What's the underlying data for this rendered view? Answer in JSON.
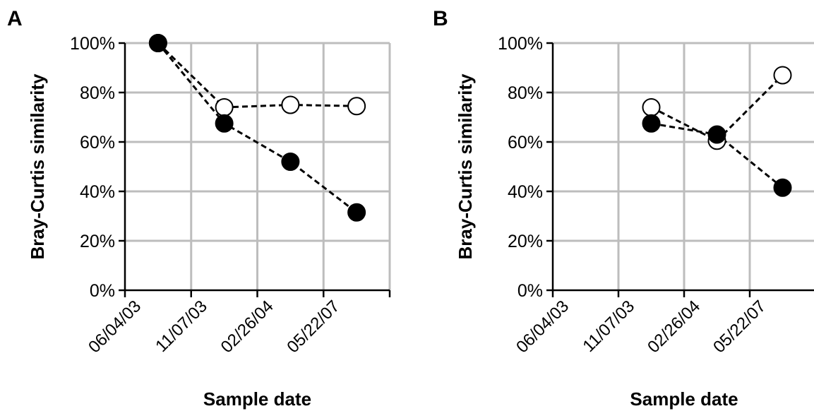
{
  "chart_data": [
    {
      "panel": "A",
      "type": "line",
      "ylabel": "Bray-Curtis similarity",
      "xlabel": "Sample date",
      "categories": [
        "06/04/03",
        "11/07/03",
        "02/26/04",
        "05/22/07"
      ],
      "y_ticks": [
        "0%",
        "20%",
        "40%",
        "60%",
        "80%",
        "100%"
      ],
      "ylim": [
        0,
        100
      ],
      "grid": true,
      "line_style": "dashed",
      "series": [
        {
          "marker": "open-circle",
          "values": [
            100,
            74,
            75,
            74.5
          ]
        },
        {
          "marker": "filled-circle",
          "values": [
            100,
            67.5,
            52,
            31.5
          ]
        }
      ]
    },
    {
      "panel": "B",
      "type": "line",
      "ylabel": "Bray-Curtis similarity",
      "xlabel": "Sample date",
      "categories": [
        "06/04/03",
        "11/07/03",
        "02/26/04",
        "05/22/07"
      ],
      "y_ticks": [
        "0%",
        "20%",
        "40%",
        "60%",
        "80%",
        "100%"
      ],
      "ylim": [
        0,
        100
      ],
      "grid": true,
      "line_style": "dashed",
      "series": [
        {
          "marker": "open-circle",
          "values": [
            null,
            74,
            60.5,
            87
          ]
        },
        {
          "marker": "filled-circle",
          "values": [
            null,
            67.5,
            63,
            41.5
          ]
        }
      ]
    }
  ]
}
